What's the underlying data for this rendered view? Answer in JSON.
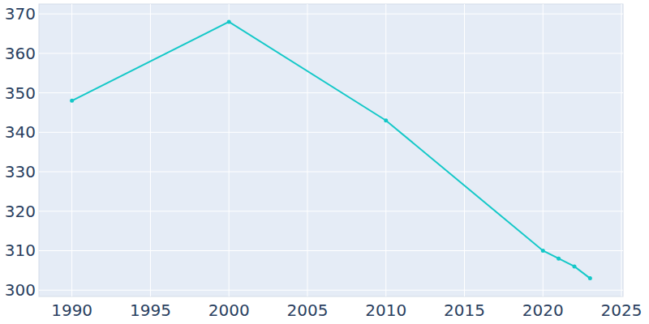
{
  "chart_data": {
    "type": "line",
    "x": [
      1990,
      2000,
      2010,
      2020,
      2021,
      2022,
      2023
    ],
    "series": [
      {
        "name": null,
        "color": "#14c8c8",
        "values": [
          348,
          368,
          343,
          310,
          308,
          306,
          303
        ],
        "marker": "circle"
      }
    ],
    "xlim": [
      1987.9,
      2025.1
    ],
    "xticks": [
      1990,
      1995,
      2000,
      2005,
      2010,
      2015,
      2020,
      2025
    ],
    "ylim": [
      298.4,
      372.5
    ],
    "yticks": [
      300,
      310,
      320,
      330,
      340,
      350,
      360,
      370
    ],
    "grid": true
  }
}
